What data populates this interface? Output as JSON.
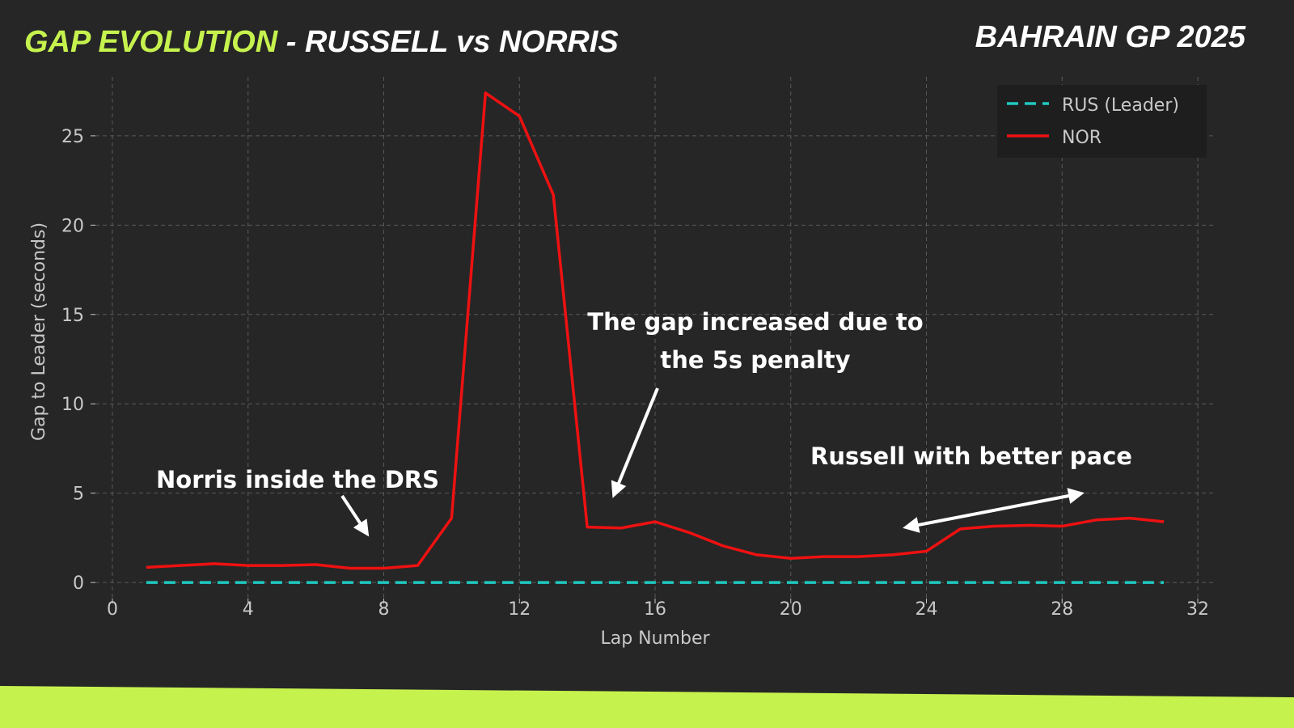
{
  "chart_data": {
    "type": "line",
    "title": "GAP EVOLUTION",
    "title_suffix": " - RUSSELL vs NORRIS",
    "subtitle": "BAHRAIN GP 2025",
    "x_label": "Lap Number",
    "y_label": "Gap to Leader (seconds)",
    "x": [
      1,
      2,
      3,
      4,
      5,
      6,
      7,
      8,
      9,
      10,
      11,
      12,
      13,
      14,
      15,
      16,
      17,
      18,
      19,
      20,
      21,
      22,
      23,
      24,
      25,
      26,
      27,
      28,
      29,
      30,
      31
    ],
    "series": [
      {
        "name": "RUS (Leader)",
        "color": "#1fc8c0",
        "linestyle": "dashed",
        "values": [
          0,
          0,
          0,
          0,
          0,
          0,
          0,
          0,
          0,
          0,
          0,
          0,
          0,
          0,
          0,
          0,
          0,
          0,
          0,
          0,
          0,
          0,
          0,
          0,
          0,
          0,
          0,
          0,
          0,
          0,
          0
        ]
      },
      {
        "name": "NOR",
        "color": "#ee1111",
        "linestyle": "solid",
        "values": [
          0.85,
          0.95,
          1.05,
          0.95,
          0.95,
          1.0,
          0.8,
          0.8,
          0.95,
          3.6,
          27.4,
          26.1,
          21.7,
          3.1,
          3.05,
          3.4,
          2.8,
          2.05,
          1.55,
          1.35,
          1.45,
          1.45,
          1.55,
          1.75,
          3.0,
          3.15,
          3.2,
          3.15,
          3.5,
          3.6,
          3.4
        ]
      }
    ],
    "xlim": [
      -0.5,
      32.5
    ],
    "xticks": [
      0,
      4,
      8,
      12,
      16,
      20,
      24,
      28,
      32
    ],
    "ylim": [
      -0.9,
      28.3
    ],
    "yticks": [
      0,
      5,
      10,
      15,
      20,
      25
    ],
    "grid": true,
    "legend": "upper right",
    "annotations": [
      "Norris inside the DRS",
      "The gap increased due to",
      "the 5s penalty",
      "Russell with better pace"
    ]
  }
}
